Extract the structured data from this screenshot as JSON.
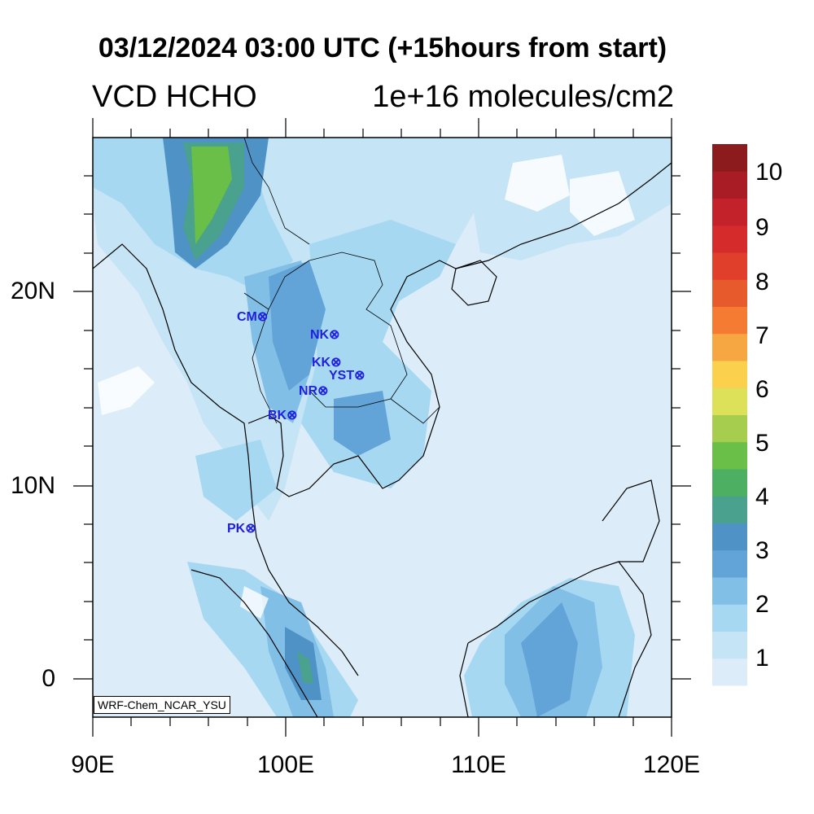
{
  "title": "03/12/2024 03:00 UTC (+15hours from start)",
  "variable_label": "VCD HCHO",
  "units_label": "1e+16 molecules/cm2",
  "model_tag": "WRF-Chem_NCAR_YSU",
  "lat_labels": [
    "20N",
    "10N",
    "0"
  ],
  "lon_labels": [
    "90E",
    "100E",
    "110E",
    "120E"
  ],
  "colorbar": {
    "labels": [
      "1",
      "2",
      "3",
      "4",
      "5",
      "6",
      "7",
      "8",
      "9",
      "10"
    ],
    "colors": [
      "#dcedf9",
      "#c5e4f5",
      "#a6d8f2",
      "#82bfe6",
      "#62a4d8",
      "#4f93c6",
      "#4aa18d",
      "#4caf62",
      "#69bf47",
      "#a7cd4e",
      "#dde159",
      "#fbd04c",
      "#f6a742",
      "#f57b32",
      "#e75a2b",
      "#df3f2b",
      "#d52b2b",
      "#c3222b",
      "#a91c26",
      "#8c1b1d"
    ]
  },
  "stations": [
    {
      "label": "CM",
      "symbol": "⊗"
    },
    {
      "label": "NK",
      "symbol": "⊗"
    },
    {
      "label": "KK",
      "symbol": "⊗"
    },
    {
      "label": "YST",
      "symbol": "⊗"
    },
    {
      "label": "NR",
      "symbol": "⊗"
    },
    {
      "label": "BK",
      "symbol": "⊗"
    },
    {
      "label": "PK",
      "symbol": "⊗"
    }
  ]
}
